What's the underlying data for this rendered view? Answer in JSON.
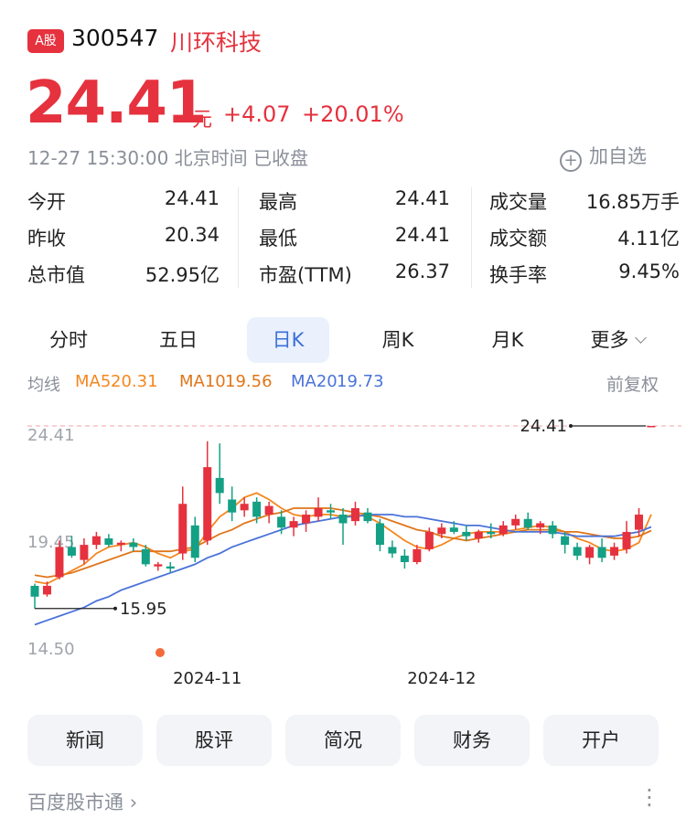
{
  "header": {
    "badge": "A股",
    "code": "300547",
    "name": "川环科技",
    "price": "24.41",
    "currency": "元",
    "change": "+4.07",
    "change_pct": "+20.01%",
    "time": "12-27 15:30:00 北京时间 已收盘",
    "watch": "加自选"
  },
  "stats": [
    [
      {
        "label": "今开",
        "value": "24.41"
      },
      {
        "label": "最高",
        "value": "24.41"
      },
      {
        "label": "成交量",
        "value": "16.85万手"
      }
    ],
    [
      {
        "label": "昨收",
        "value": "20.34"
      },
      {
        "label": "最低",
        "value": "24.41"
      },
      {
        "label": "成交额",
        "value": "4.11亿"
      }
    ],
    [
      {
        "label": "总市值",
        "value": "52.95亿"
      },
      {
        "label": "市盈(TTM)",
        "value": "26.37"
      },
      {
        "label": "换手率",
        "value": "9.45%"
      }
    ]
  ],
  "tabs": [
    "分时",
    "五日",
    "日K",
    "周K",
    "月K",
    "更多"
  ],
  "chart_data": {
    "type": "candlestick",
    "ma_label": "均线",
    "adjust": "前复权",
    "categories": [
      null,
      null,
      null,
      null,
      null,
      null,
      null,
      null,
      null,
      null,
      null,
      null,
      null,
      null,
      "2024-11",
      null,
      null,
      null,
      null,
      null,
      null,
      null,
      null,
      null,
      null,
      null,
      null,
      null,
      null,
      null,
      null,
      null,
      null,
      "2024-12",
      null,
      null,
      null,
      null,
      null,
      null,
      null,
      null,
      null,
      null,
      null,
      null,
      null,
      null,
      null,
      null,
      null
    ],
    "open": [
      17.0,
      16.6,
      17.4,
      18.8,
      18.2,
      18.9,
      19.2,
      18.9,
      19.0,
      18.7,
      17.9,
      17.9,
      18.5,
      19.8,
      19.1,
      22.0,
      21.0,
      20.5,
      20.9,
      20.3,
      20.2,
      19.7,
      19.9,
      20.2,
      20.5,
      20.3,
      20.0,
      20.4,
      19.9,
      18.8,
      18.4,
      18.1,
      18.7,
      19.4,
      19.7,
      19.5,
      19.2,
      19.5,
      19.4,
      19.8,
      20.1,
      19.7,
      19.8,
      19.3,
      18.8,
      18.3,
      18.8,
      18.4,
      18.7,
      19.6,
      24.41
    ],
    "high": [
      17.1,
      17.2,
      19.1,
      19.3,
      19.2,
      19.5,
      19.4,
      19.1,
      19.2,
      18.9,
      18.1,
      18.1,
      21.6,
      20.2,
      23.7,
      23.6,
      21.6,
      21.1,
      21.1,
      20.9,
      20.5,
      20.2,
      20.5,
      21.1,
      20.8,
      20.6,
      20.9,
      20.6,
      20.1,
      19.1,
      18.7,
      18.9,
      19.7,
      19.9,
      20.0,
      19.8,
      19.6,
      19.9,
      20.0,
      20.3,
      20.4,
      20.0,
      20.0,
      19.5,
      19.0,
      18.9,
      19.2,
      19.0,
      20.0,
      20.6,
      24.41
    ],
    "low": [
      15.95,
      16.5,
      17.3,
      18.3,
      18.0,
      18.7,
      18.8,
      18.6,
      18.6,
      17.9,
      17.7,
      17.6,
      18.2,
      18.1,
      18.9,
      20.8,
      20.0,
      20.2,
      19.9,
      19.9,
      19.4,
      19.3,
      19.5,
      20.0,
      20.1,
      18.9,
      19.8,
      19.9,
      18.6,
      18.3,
      17.8,
      18.0,
      18.6,
      19.2,
      19.4,
      19.1,
      19.0,
      19.2,
      19.3,
      19.6,
      19.6,
      19.4,
      19.2,
      18.5,
      18.2,
      18.0,
      18.1,
      18.2,
      18.5,
      19.3,
      24.41
    ],
    "close": [
      16.5,
      17.0,
      18.8,
      18.4,
      18.9,
      19.3,
      18.9,
      19.0,
      18.8,
      18.0,
      18.0,
      17.8,
      20.8,
      18.3,
      22.5,
      21.3,
      20.4,
      20.8,
      20.2,
      20.7,
      19.7,
      20.0,
      20.3,
      20.6,
      20.4,
      19.9,
      20.6,
      20.0,
      18.9,
      18.5,
      18.1,
      18.7,
      19.5,
      19.7,
      19.5,
      19.3,
      19.5,
      19.4,
      19.8,
      20.1,
      19.7,
      19.9,
      19.4,
      18.9,
      18.4,
      18.8,
      18.3,
      18.8,
      19.5,
      20.3,
      24.41
    ],
    "up_color": "#e5323e",
    "down_color": "#14a085",
    "series": [
      {
        "name": "MA5",
        "color": "#f5871f",
        "values": [
          17.2,
          17.1,
          17.4,
          17.7,
          18.0,
          18.5,
          18.8,
          18.9,
          19.0,
          18.8,
          18.5,
          18.3,
          18.6,
          18.7,
          19.5,
          20.2,
          20.6,
          21.1,
          21.3,
          21.0,
          20.6,
          20.3,
          20.2,
          20.3,
          20.3,
          20.2,
          20.3,
          20.2,
          19.9,
          19.5,
          19.1,
          18.8,
          18.7,
          18.9,
          19.2,
          19.4,
          19.5,
          19.5,
          19.5,
          19.6,
          19.7,
          19.8,
          19.7,
          19.5,
          19.2,
          19.0,
          18.7,
          18.6,
          18.7,
          19.0,
          20.31
        ]
      },
      {
        "name": "MA10",
        "color": "#e0761a",
        "values": [
          17.5,
          17.4,
          17.5,
          17.6,
          17.8,
          18.0,
          18.2,
          18.4,
          18.6,
          18.6,
          18.6,
          18.6,
          18.7,
          18.8,
          19.1,
          19.4,
          19.6,
          19.9,
          20.1,
          20.3,
          20.4,
          20.6,
          20.6,
          20.6,
          20.6,
          20.5,
          20.4,
          20.3,
          20.2,
          20.0,
          19.8,
          19.6,
          19.5,
          19.3,
          19.2,
          19.1,
          19.2,
          19.3,
          19.4,
          19.5,
          19.6,
          19.6,
          19.6,
          19.5,
          19.5,
          19.4,
          19.3,
          19.2,
          19.2,
          19.3,
          19.56
        ]
      },
      {
        "name": "MA20",
        "color": "#4a73d9",
        "values": [
          15.2,
          15.4,
          15.6,
          15.8,
          16.0,
          16.3,
          16.5,
          16.8,
          17.0,
          17.2,
          17.4,
          17.6,
          17.8,
          18.0,
          18.3,
          18.5,
          18.8,
          19.0,
          19.2,
          19.4,
          19.6,
          19.8,
          19.9,
          20.0,
          20.1,
          20.2,
          20.2,
          20.3,
          20.3,
          20.3,
          20.2,
          20.2,
          20.1,
          20.0,
          19.9,
          19.8,
          19.8,
          19.7,
          19.6,
          19.5,
          19.5,
          19.5,
          19.5,
          19.4,
          19.3,
          19.3,
          19.3,
          19.3,
          19.4,
          19.5,
          19.73
        ]
      }
    ],
    "ylim": [
      14.5,
      24.41
    ],
    "yticks": [
      24.41,
      19.45,
      {
        "value": 14.5,
        "label": "14.50"
      }
    ],
    "high_marker": 24.41,
    "low_marker": 15.95
  },
  "buttons": [
    "新闻",
    "股评",
    "简况",
    "财务",
    "开户"
  ],
  "footer": "百度股市通"
}
